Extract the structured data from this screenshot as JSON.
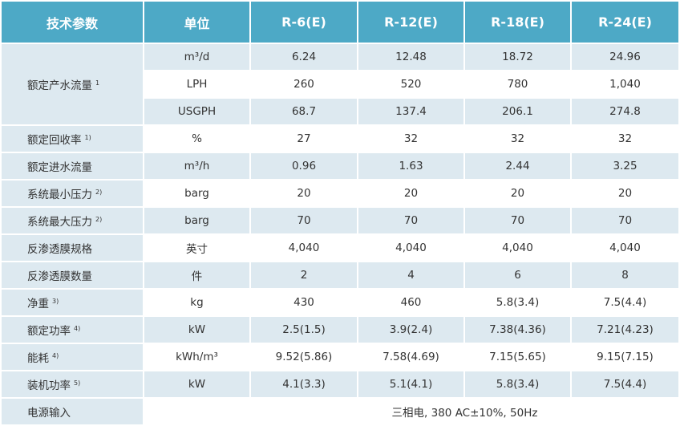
{
  "table": {
    "header": [
      "技术参数",
      "单位",
      "R-6(E)",
      "R-12(E)",
      "R-18(E)",
      "R-24(E)"
    ],
    "rows": [
      {
        "param": "额定产水流量",
        "note": "1",
        "lines": [
          {
            "unit": "m³/d",
            "values": [
              "6.24",
              "12.48",
              "18.72",
              "24.96"
            ]
          },
          {
            "unit": "LPH",
            "values": [
              "260",
              "520",
              "780",
              "1,040"
            ]
          },
          {
            "unit": "USGPH",
            "values": [
              "68.7",
              "137.4",
              "206.1",
              "274.8"
            ]
          }
        ]
      },
      {
        "param": "额定回收率",
        "note": "1)",
        "lines": [
          {
            "unit": "%",
            "values": [
              "27",
              "32",
              "32",
              "32"
            ]
          }
        ]
      },
      {
        "param": "额定进水流量",
        "lines": [
          {
            "unit": "m³/h",
            "values": [
              "0.96",
              "1.63",
              "2.44",
              "3.25"
            ]
          }
        ]
      },
      {
        "param": "系统最小压力",
        "note": "2)",
        "lines": [
          {
            "unit": "barg",
            "values": [
              "20",
              "20",
              "20",
              "20"
            ]
          }
        ]
      },
      {
        "param": "系统最大压力",
        "note": "2)",
        "lines": [
          {
            "unit": "barg",
            "values": [
              "70",
              "70",
              "70",
              "70"
            ]
          }
        ]
      },
      {
        "param": "反渗透膜规格",
        "lines": [
          {
            "unit": "英寸",
            "values": [
              "4,040",
              "4,040",
              "4,040",
              "4,040"
            ]
          }
        ]
      },
      {
        "param": "反渗透膜数量",
        "lines": [
          {
            "unit": "件",
            "values": [
              "2",
              "4",
              "6",
              "8"
            ]
          }
        ]
      },
      {
        "param": "净重",
        "note": "3)",
        "lines": [
          {
            "unit": "kg",
            "values": [
              "430",
              "460",
              "5.8(3.4)",
              "7.5(4.4)"
            ]
          }
        ]
      },
      {
        "param": "额定功率",
        "note": "4)",
        "lines": [
          {
            "unit": "kW",
            "values": [
              "2.5(1.5)",
              "3.9(2.4)",
              "7.38(4.36)",
              "7.21(4.23)"
            ]
          }
        ]
      },
      {
        "param": "能耗",
        "note": "4)",
        "lines": [
          {
            "unit": "kWh/m³",
            "values": [
              "9.52(5.86)",
              "7.58(4.69)",
              "7.15(5.65)",
              "9.15(7.15)"
            ]
          }
        ]
      },
      {
        "param": "装机功率",
        "note": "5)",
        "lines": [
          {
            "unit": "kW",
            "values": [
              "4.1(3.3)",
              "5.1(4.1)",
              "5.8(3.4)",
              "7.5(4.4)"
            ]
          }
        ]
      },
      {
        "param": "电源输入",
        "value": "三相电, 380 AC±10%, 50Hz"
      }
    ]
  }
}
